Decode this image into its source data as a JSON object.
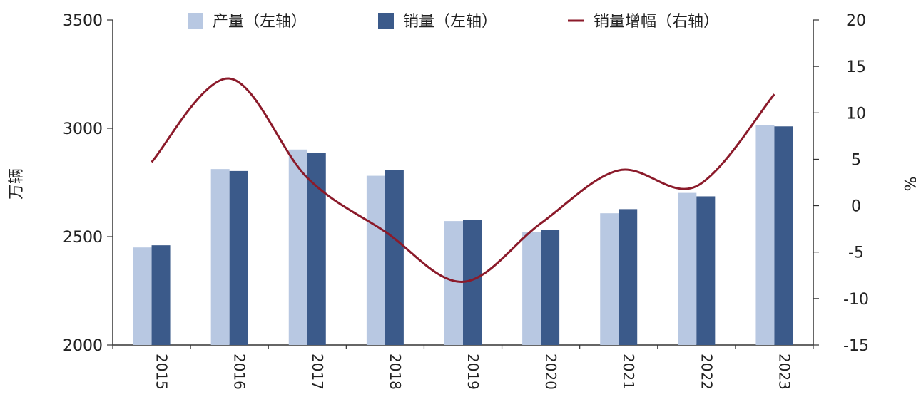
{
  "chart_data": {
    "type": "bar",
    "categories": [
      "2015",
      "2016",
      "2017",
      "2018",
      "2019",
      "2020",
      "2021",
      "2022",
      "2023"
    ],
    "series": [
      {
        "name": "产量（左轴）",
        "kind": "bar",
        "axis": "left",
        "color": "#b8c8e2",
        "values": [
          2450,
          2812,
          2902,
          2781,
          2572,
          2523,
          2608,
          2702,
          3016
        ]
      },
      {
        "name": "销量（左轴）",
        "kind": "bar",
        "axis": "left",
        "color": "#3b5a8a",
        "values": [
          2460,
          2803,
          2888,
          2808,
          2577,
          2531,
          2627,
          2686,
          3009
        ]
      },
      {
        "name": "销量增幅（右轴）",
        "kind": "line",
        "axis": "right",
        "color": "#8b1a2a",
        "values": [
          4.7,
          13.7,
          3.0,
          -2.8,
          -8.2,
          -1.9,
          3.8,
          2.1,
          12.0
        ]
      }
    ],
    "left_axis": {
      "label": "万辆",
      "ylim": [
        2000,
        3500
      ],
      "ticks": [
        2000,
        2500,
        3000,
        3500
      ]
    },
    "right_axis": {
      "label": "%",
      "ylim": [
        -15,
        20
      ],
      "ticks": [
        -15,
        -10,
        -5,
        0,
        5,
        10,
        15,
        20
      ]
    },
    "legend_position": "top",
    "grid": false
  }
}
